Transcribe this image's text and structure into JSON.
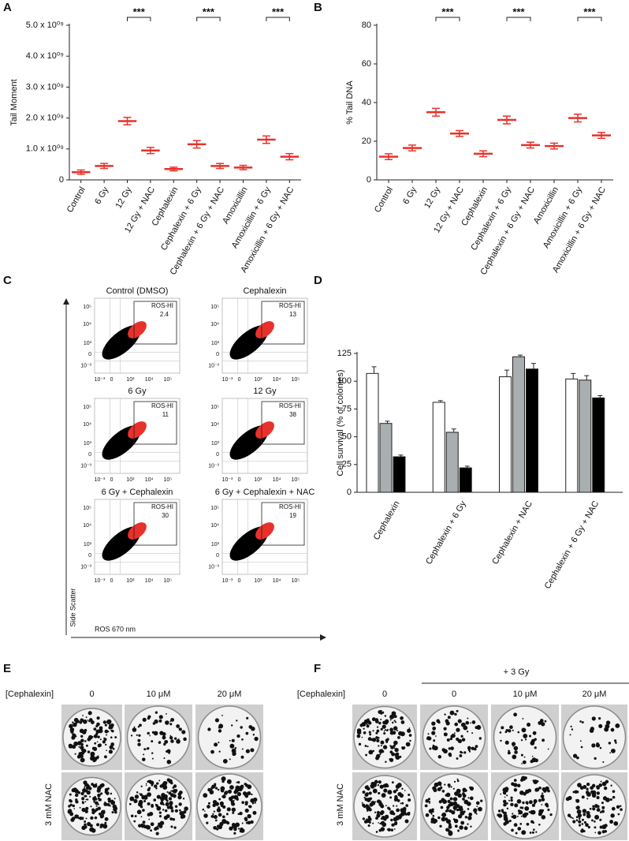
{
  "panel_labels": [
    "A",
    "B",
    "C",
    "D",
    "E",
    "F"
  ],
  "chart_data": [
    {
      "type": "strip",
      "y_label": "Tail Moment",
      "categories": [
        "Control",
        "6 Gy",
        "12 Gy",
        "12 Gy + NAC",
        "Cephalexin",
        "Cephalexin + 6 Gy",
        "Cephalexin + 6 Gy + NAC",
        "Amoxicillin",
        "Amoxicillin + 6 Gy",
        "Amoxicillin + 6 Gy + NAC"
      ],
      "values": [
        250000000,
        450000000,
        1900000000,
        950000000,
        350000000,
        1150000000,
        450000000,
        400000000,
        1300000000,
        750000000
      ],
      "errors": [
        70000000,
        80000000,
        120000000,
        100000000,
        60000000,
        120000000,
        80000000,
        70000000,
        120000000,
        100000000
      ],
      "color": "#e8312a",
      "ylim": [
        0,
        5000000000
      ],
      "yticks": [
        0,
        {
          "value": 1000000000,
          "label": "1.0 x 10⁰⁹"
        },
        {
          "value": 2000000000,
          "label": "2.0 x 10⁰⁹"
        },
        {
          "value": 3000000000,
          "label": "3.0 x 10⁰⁹"
        },
        {
          "value": 4000000000,
          "label": "4.0 x 10⁰⁹"
        },
        {
          "value": 5000000000,
          "label": "5.0 x 10⁰⁹"
        }
      ],
      "comparisons": [
        {
          "label": "***",
          "categories": [
            2,
            3
          ]
        },
        {
          "label": "***",
          "categories": [
            5,
            6
          ]
        },
        {
          "label": "***",
          "categories": [
            8,
            9
          ]
        }
      ]
    },
    {
      "type": "strip",
      "y_label": "% Tail DNA",
      "categories": [
        "Control",
        "6 Gy",
        "12 Gy",
        "12 Gy + NAC",
        "Cephalexin",
        "Cephalexin + 6 Gy",
        "Cephalexin + 6 Gy + NAC",
        "Amoxicillin",
        "Amoxicillin + 6 Gy",
        "Amoxicillin + 6 Gy + NAC"
      ],
      "values": [
        12,
        16.5,
        35,
        24,
        13.5,
        31,
        18,
        17.5,
        32,
        23
      ],
      "errors": [
        1.5,
        1.5,
        2,
        1.5,
        1.5,
        2,
        1.5,
        1.5,
        2,
        1.5
      ],
      "color": "#e8312a",
      "ylim": [
        0,
        80
      ],
      "yticks": [
        0,
        20,
        40,
        60,
        80
      ],
      "comparisons": [
        {
          "label": "***",
          "categories": [
            2,
            3
          ]
        },
        {
          "label": "***",
          "categories": [
            5,
            6
          ]
        },
        {
          "label": "***",
          "categories": [
            8,
            9
          ]
        }
      ]
    },
    {
      "type": "bar",
      "y_label": "Cell survival (% of colonies)",
      "categories": [
        "Cephalexin",
        "Cephalexin + 6 Gy",
        "Cephalexin + NAC",
        "Cephalexin + 6 Gy + NAC"
      ],
      "series": [
        {
          "color": "#ffffff",
          "values": [
            107,
            81,
            104,
            102
          ],
          "errors": [
            6,
            1.5,
            6,
            5
          ]
        },
        {
          "color": "#a9aeb1",
          "values": [
            62,
            54,
            122,
            101
          ],
          "errors": [
            2,
            3,
            1.5,
            4
          ]
        },
        {
          "color": "#000000",
          "values": [
            32,
            22,
            111,
            85
          ],
          "errors": [
            1.5,
            1.5,
            5,
            2
          ]
        }
      ],
      "ylim": [
        0,
        125
      ],
      "yticks": [
        0,
        25,
        50,
        75,
        100,
        125
      ]
    }
  ],
  "flow_cytometry": {
    "x_label": "ROS 670 nm",
    "y_label": "Side Scatter",
    "gate_label": "ROS-HI",
    "xticks": [
      "10⁻³",
      "0",
      "10³",
      "10⁴",
      "10⁵"
    ],
    "yticks": [
      "10⁵",
      "10⁴",
      "10³",
      "0",
      "10⁻³"
    ],
    "plots": [
      {
        "title": "Control (DMSO)",
        "gate_value": 2.4
      },
      {
        "title": "Cephalexin",
        "gate_value": 13
      },
      {
        "title": "6 Gy",
        "gate_value": 11
      },
      {
        "title": "12 Gy",
        "gate_value": 38
      },
      {
        "title": "6 Gy + Cephalexin",
        "gate_value": 30
      },
      {
        "title": "6 Gy + Cephalexin + NAC",
        "gate_value": 19
      }
    ]
  },
  "colony_assay": {
    "E": {
      "row_header": "[Cephalexin]",
      "columns": [
        "0",
        "10 μM",
        "20 μM"
      ],
      "row_label": "3 mM NAC"
    },
    "F": {
      "group_label": "+ 3 Gy",
      "row_header": "[Cephalexin]",
      "columns": [
        "0",
        "0",
        "10 μM",
        "20 μM"
      ],
      "row_label": "3 mM NAC"
    }
  }
}
